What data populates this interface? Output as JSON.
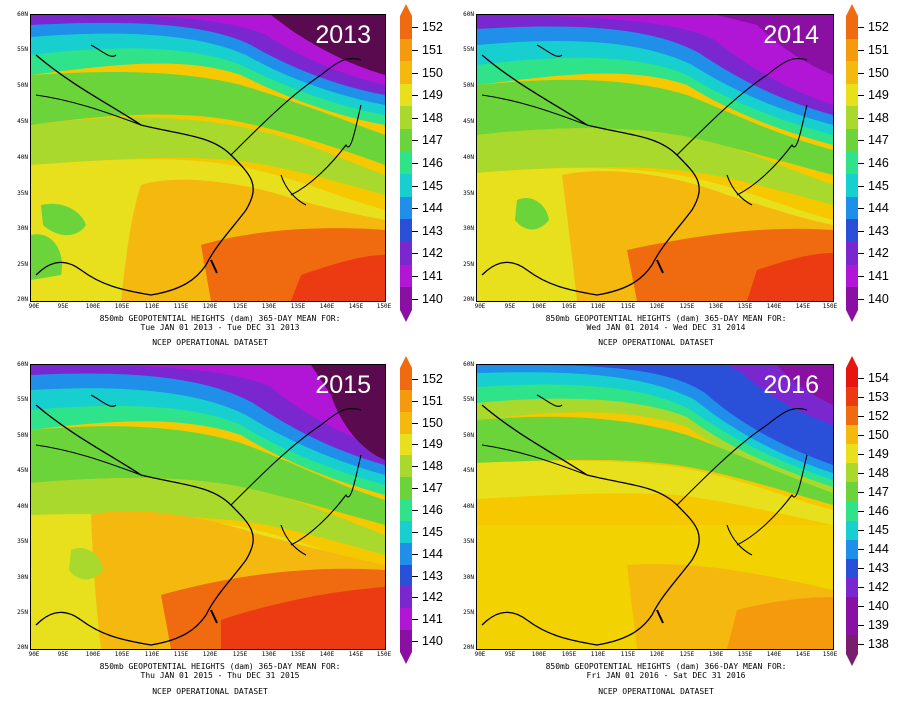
{
  "colors": {
    "c138": "#7b1d6e",
    "c139": "#8a0fa3",
    "c140": "#8a0fa3",
    "c141": "#b116d6",
    "c142": "#7a27cf",
    "c143": "#2a4fd8",
    "c144": "#1f8fea",
    "c145": "#18cfcf",
    "c146": "#2fe38a",
    "c147": "#6bd43a",
    "c148": "#a9d92c",
    "c149": "#e8e01c",
    "c150": "#f5b80e",
    "c151": "#f59a0c",
    "c152": "#f06a10",
    "c153": "#ec3a12",
    "c154": "#e61512",
    "dark": "#5a0a4e"
  },
  "panels": [
    {
      "year": "2013",
      "caption_line1": "850mb GEOPOTENTIAL HEIGHTS (dam)     365-DAY MEAN FOR:",
      "caption_line2": "Tue JAN 01 2013 - Tue DEC 31 2013",
      "caption_line3": "NCEP OPERATIONAL DATASET",
      "legend": [
        "152",
        "151",
        "150",
        "149",
        "148",
        "147",
        "146",
        "145",
        "144",
        "143",
        "142",
        "141",
        "140"
      ]
    },
    {
      "year": "2014",
      "caption_line1": "850mb GEOPOTENTIAL HEIGHTS (dam)     365-DAY MEAN FOR:",
      "caption_line2": "Wed JAN 01 2014 - Wed DEC 31 2014",
      "caption_line3": "NCEP OPERATIONAL DATASET",
      "legend": [
        "152",
        "151",
        "150",
        "149",
        "148",
        "147",
        "146",
        "145",
        "144",
        "143",
        "142",
        "141",
        "140"
      ]
    },
    {
      "year": "2015",
      "caption_line1": "850mb GEOPOTENTIAL HEIGHTS (dam)     365-DAY MEAN FOR:",
      "caption_line2": "Thu JAN 01 2015 - Thu DEC 31 2015",
      "caption_line3": "NCEP OPERATIONAL DATASET",
      "legend": [
        "152",
        "151",
        "150",
        "149",
        "148",
        "147",
        "146",
        "145",
        "144",
        "143",
        "142",
        "141",
        "140"
      ]
    },
    {
      "year": "2016",
      "caption_line1": "850mb GEOPOTENTIAL HEIGHTS (dam)     366-DAY MEAN FOR:",
      "caption_line2": "Fri JAN 01 2016 - Sat DEC 31 2016",
      "caption_line3": "NCEP OPERATIONAL DATASET",
      "legend": [
        "154",
        "153",
        "152",
        "150",
        "149",
        "148",
        "147",
        "146",
        "145",
        "144",
        "143",
        "142",
        "140",
        "139",
        "138"
      ]
    }
  ],
  "axes": {
    "lat_labels": [
      "60N",
      "55N",
      "50N",
      "45N",
      "40N",
      "35N",
      "30N",
      "25N",
      "20N"
    ],
    "lon_labels": [
      "90E",
      "95E",
      "100E",
      "105E",
      "110E",
      "115E",
      "120E",
      "125E",
      "130E",
      "135E",
      "140E",
      "145E",
      "150E"
    ]
  }
}
